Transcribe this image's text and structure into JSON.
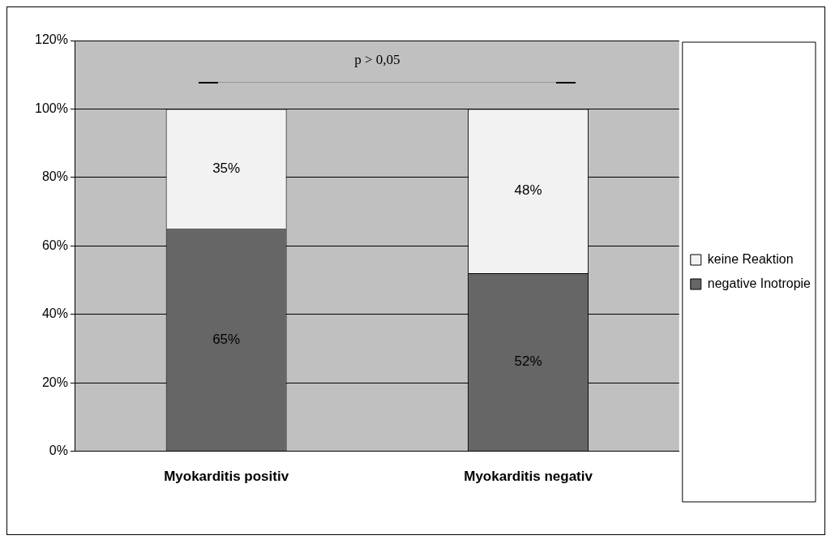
{
  "chart_data": {
    "type": "bar",
    "stacked": true,
    "categories": [
      "Myokarditis positiv",
      "Myokarditis negativ"
    ],
    "series": [
      {
        "name": "negative Inotropie",
        "color": "#666666",
        "values": [
          65,
          52
        ],
        "value_labels": [
          "65%",
          "52%"
        ]
      },
      {
        "name": "keine Reaktion",
        "color": "#f2f2f2",
        "values": [
          35,
          48
        ],
        "value_labels": [
          "35%",
          "48%"
        ]
      }
    ],
    "ylim": [
      0,
      120
    ],
    "yticks": [
      {
        "value": 0,
        "label": "0%"
      },
      {
        "value": 20,
        "label": "20%"
      },
      {
        "value": 40,
        "label": "40%"
      },
      {
        "value": 60,
        "label": "60%"
      },
      {
        "value": 80,
        "label": "80%"
      },
      {
        "value": 100,
        "label": "100%"
      },
      {
        "value": 120,
        "label": "120%"
      }
    ],
    "grid": "y",
    "legend": "right",
    "annotations": [
      "p > 0,05"
    ]
  }
}
